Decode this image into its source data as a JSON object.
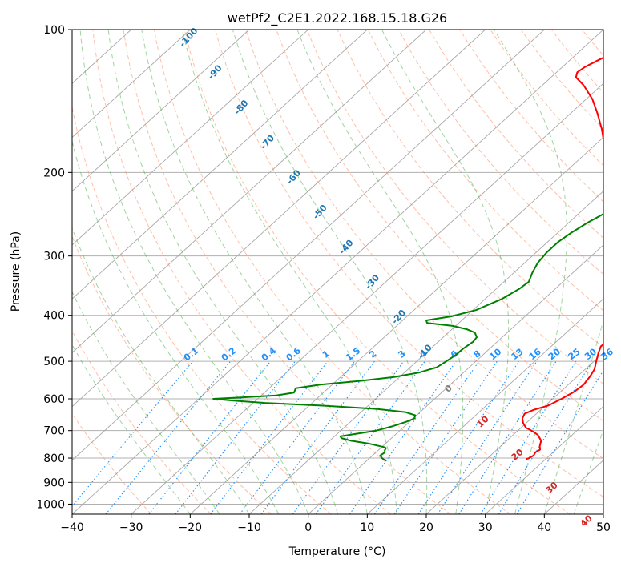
{
  "chart_data": {
    "type": "line",
    "diagram": "Skew-T log-P",
    "title": "wetPf2_C2E1.2022.168.15.18.G26",
    "xlabel": "Temperature (°C)",
    "ylabel": "Pressure (hPa)",
    "xlim": [
      -40,
      50
    ],
    "ylim": [
      1050,
      100
    ],
    "y_scale": "log",
    "grid": true,
    "x_ticks": [
      -40,
      -30,
      -20,
      -10,
      0,
      10,
      20,
      30,
      40,
      50
    ],
    "y_ticks": [
      100,
      200,
      300,
      400,
      500,
      600,
      700,
      800,
      900,
      1000
    ],
    "temperature": {
      "name": "Temperature",
      "color": "#ff0000",
      "points": [
        [
          805,
          26.7
        ],
        [
          800,
          27.0
        ],
        [
          790,
          27.3
        ],
        [
          778,
          27.0
        ],
        [
          768,
          27.3
        ],
        [
          755,
          26.6
        ],
        [
          735,
          25.8
        ],
        [
          715,
          24.2
        ],
        [
          700,
          22.3
        ],
        [
          690,
          20.8
        ],
        [
          675,
          19.5
        ],
        [
          660,
          18.5
        ],
        [
          645,
          18.0
        ],
        [
          633,
          18.8
        ],
        [
          620,
          20.5
        ],
        [
          600,
          21.5
        ],
        [
          580,
          22.3
        ],
        [
          560,
          22.6
        ],
        [
          540,
          22.2
        ],
        [
          520,
          21.6
        ],
        [
          500,
          20.4
        ],
        [
          480,
          19.2
        ],
        [
          465,
          18.4
        ],
        [
          455,
          18.5
        ],
        [
          445,
          19.2
        ],
        [
          432,
          20.2
        ],
        [
          420,
          20.5
        ],
        [
          405,
          20.0
        ],
        [
          395,
          19.1
        ],
        [
          380,
          17.3
        ],
        [
          360,
          14.6
        ],
        [
          340,
          11.8
        ],
        [
          320,
          8.8
        ],
        [
          300,
          6.0
        ],
        [
          280,
          2.2
        ],
        [
          260,
          -1.5
        ],
        [
          240,
          -5.0
        ],
        [
          222,
          -8.5
        ],
        [
          205,
          -12.0
        ],
        [
          190,
          -15.0
        ],
        [
          175,
          -18.4
        ],
        [
          162,
          -21.8
        ],
        [
          150,
          -25.5
        ],
        [
          140,
          -29.0
        ],
        [
          131,
          -33.0
        ],
        [
          126,
          -35.8
        ],
        [
          123,
          -36.5
        ],
        [
          120,
          -36.2
        ],
        [
          116,
          -35.2
        ],
        [
          112,
          -34.1
        ],
        [
          110,
          -33.0
        ],
        [
          108,
          -32.0
        ],
        [
          106,
          -32.0
        ],
        [
          104,
          -32.5
        ],
        [
          102,
          -32.8
        ],
        [
          100,
          -30.0
        ]
      ]
    },
    "dewpoint": {
      "name": "Dewpoint",
      "color": "#008000",
      "points": [
        [
          810,
          3.3
        ],
        [
          805,
          2.6
        ],
        [
          800,
          2.1
        ],
        [
          790,
          1.3
        ],
        [
          778,
          1.5
        ],
        [
          770,
          1.1
        ],
        [
          762,
          0.9
        ],
        [
          758,
          0.3
        ],
        [
          745,
          -3.0
        ],
        [
          735,
          -6.5
        ],
        [
          726,
          -8.5
        ],
        [
          720,
          -9.0
        ],
        [
          712,
          -7.0
        ],
        [
          700,
          -4.0
        ],
        [
          685,
          -2.0
        ],
        [
          670,
          -0.5
        ],
        [
          660,
          0.2
        ],
        [
          650,
          -0.2
        ],
        [
          640,
          -2.5
        ],
        [
          630,
          -8.0
        ],
        [
          620,
          -18.0
        ],
        [
          612,
          -28.0
        ],
        [
          605,
          -34.0
        ],
        [
          600,
          -37.5
        ],
        [
          596,
          -33.0
        ],
        [
          590,
          -27.5
        ],
        [
          582,
          -25.0
        ],
        [
          570,
          -25.5
        ],
        [
          560,
          -22.0
        ],
        [
          550,
          -16.0
        ],
        [
          540,
          -11.0
        ],
        [
          528,
          -7.5
        ],
        [
          515,
          -5.5
        ],
        [
          500,
          -5.0
        ],
        [
          485,
          -4.6
        ],
        [
          470,
          -4.5
        ],
        [
          455,
          -4.1
        ],
        [
          445,
          -4.3
        ],
        [
          435,
          -5.5
        ],
        [
          428,
          -7.5
        ],
        [
          421,
          -10.5
        ],
        [
          415,
          -15.4
        ],
        [
          410,
          -16.0
        ],
        [
          402,
          -12.5
        ],
        [
          390,
          -9.5
        ],
        [
          370,
          -7.2
        ],
        [
          352,
          -6.1
        ],
        [
          340,
          -5.8
        ],
        [
          325,
          -6.9
        ],
        [
          310,
          -7.8
        ],
        [
          295,
          -8.2
        ],
        [
          280,
          -8.2
        ],
        [
          268,
          -7.7
        ],
        [
          255,
          -6.8
        ],
        [
          245,
          -5.8
        ],
        [
          235,
          -5.3
        ],
        [
          225,
          -4.9
        ],
        [
          218,
          -4.8
        ],
        [
          212,
          -5.9
        ],
        [
          206,
          -7.5
        ],
        [
          200,
          -8.5
        ],
        [
          193,
          -10.1
        ],
        [
          187,
          -10.5
        ],
        [
          180,
          -11.1
        ],
        [
          170,
          -12.9
        ],
        [
          160,
          -14.0
        ],
        [
          150,
          -15.4
        ],
        [
          140,
          -16.2
        ],
        [
          132,
          -17.0
        ],
        [
          125,
          -17.8
        ],
        [
          120,
          -18.5
        ],
        [
          116,
          -18.5
        ],
        [
          112,
          -17.6
        ],
        [
          108,
          -15.8
        ],
        [
          105,
          -13.9
        ],
        [
          102,
          -12.0
        ],
        [
          100,
          -11.0
        ]
      ]
    },
    "dry_adiabat_labels": [
      "-100",
      "-90",
      "-80",
      "-70",
      "-60",
      "-50",
      "-40",
      "-30",
      "-20",
      "-10"
    ],
    "dry_adiabat_values": [
      -100,
      -90,
      -80,
      -70,
      -60,
      -50,
      -40,
      -30,
      -20,
      -10
    ],
    "moist_adiabat_labels": [
      "0",
      "10",
      "20",
      "30",
      "40"
    ],
    "moist_adiabat_values": [
      0,
      10,
      20,
      30,
      40
    ],
    "mixing_ratio_labels": [
      "0.1",
      "0.2",
      "0.4",
      "0.6",
      "1",
      "1.5",
      "2",
      "3",
      "4",
      "6",
      "8",
      "10",
      "13",
      "16",
      "20",
      "25",
      "30",
      "36"
    ],
    "mixing_ratio_values": [
      0.1,
      0.2,
      0.4,
      0.6,
      1,
      1.5,
      2,
      3,
      4,
      6,
      8,
      10,
      13,
      16,
      20,
      25,
      30,
      36
    ],
    "colors": {
      "dry_adiabat": "#ff7f50",
      "moist_adiabat": "#2ca02c",
      "mixing_ratio": "#1e90ff",
      "dry_label": "#1f77b4",
      "moist_label": "#d62728",
      "isotherm": "#808080"
    }
  }
}
